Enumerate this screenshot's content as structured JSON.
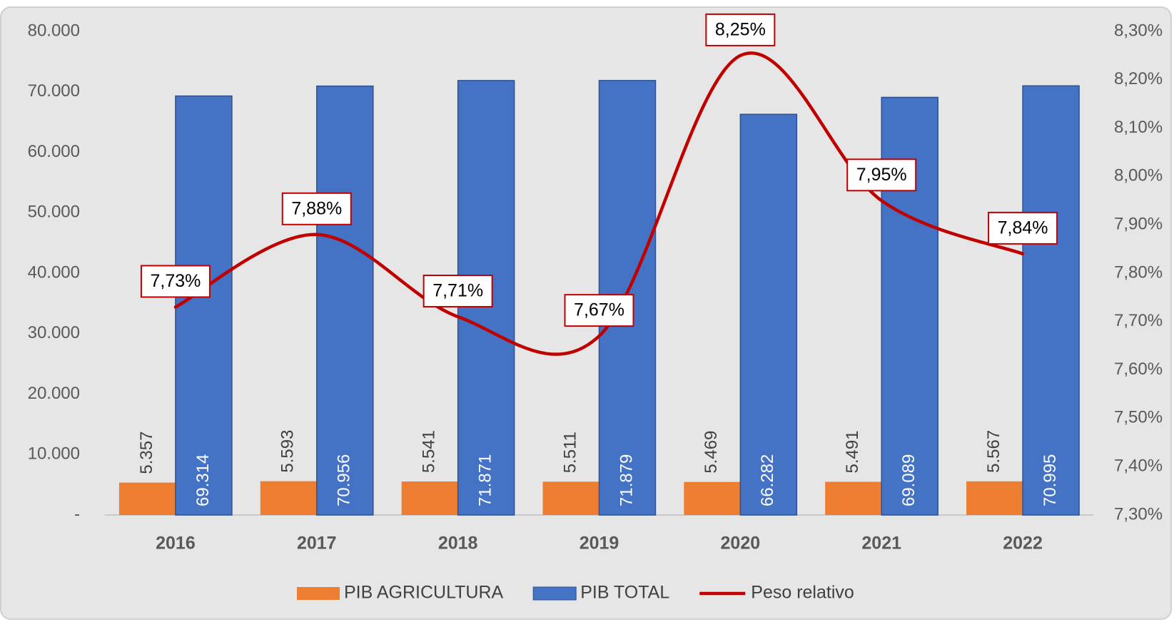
{
  "chart_data": {
    "type": "bar",
    "categories": [
      "2016",
      "2017",
      "2018",
      "2019",
      "2020",
      "2021",
      "2022"
    ],
    "series": [
      {
        "name": "PIB AGRICULTURA",
        "color": "#ed7d31",
        "values": [
          5357,
          5593,
          5541,
          5511,
          5469,
          5491,
          5567
        ],
        "value_labels": [
          "5.357",
          "5.593",
          "5.541",
          "5.511",
          "5.469",
          "5.491",
          "5.567"
        ]
      },
      {
        "name": "PIB TOTAL",
        "color": "#4472c4",
        "values": [
          69314,
          70956,
          71871,
          71879,
          66282,
          69089,
          70995
        ],
        "value_labels": [
          "69.314",
          "70.956",
          "71.871",
          "71.879",
          "66.282",
          "69.089",
          "70.995"
        ]
      },
      {
        "name": "Peso relativo",
        "color": "#c00000",
        "type": "line",
        "axis": "y2",
        "values": [
          7.73,
          7.88,
          7.71,
          7.67,
          8.25,
          7.95,
          7.84
        ],
        "value_labels": [
          "7,73%",
          "7,88%",
          "7,71%",
          "7,67%",
          "8,25%",
          "7,95%",
          "7,84%"
        ]
      }
    ],
    "ylim": [
      0,
      80000
    ],
    "yticks": [
      {
        "value": 0,
        "label": "-"
      },
      {
        "value": 10000,
        "label": "10.000"
      },
      {
        "value": 20000,
        "label": "20.000"
      },
      {
        "value": 30000,
        "label": "30.000"
      },
      {
        "value": 40000,
        "label": "40.000"
      },
      {
        "value": 50000,
        "label": "50.000"
      },
      {
        "value": 60000,
        "label": "60.000"
      },
      {
        "value": 70000,
        "label": "70.000"
      },
      {
        "value": 80000,
        "label": "80.000"
      }
    ],
    "y2lim": [
      7.3,
      8.3
    ],
    "y2ticks": [
      {
        "value": 7.3,
        "label": "7,30%"
      },
      {
        "value": 7.4,
        "label": "7,40%"
      },
      {
        "value": 7.5,
        "label": "7,50%"
      },
      {
        "value": 7.6,
        "label": "7,60%"
      },
      {
        "value": 7.7,
        "label": "7,70%"
      },
      {
        "value": 7.8,
        "label": "7,80%"
      },
      {
        "value": 7.9,
        "label": "7,90%"
      },
      {
        "value": 8.0,
        "label": "8,00%"
      },
      {
        "value": 8.1,
        "label": "8,10%"
      },
      {
        "value": 8.2,
        "label": "8,20%"
      },
      {
        "value": 8.3,
        "label": "8,30%"
      }
    ],
    "grid": false,
    "legend": "bottom"
  }
}
